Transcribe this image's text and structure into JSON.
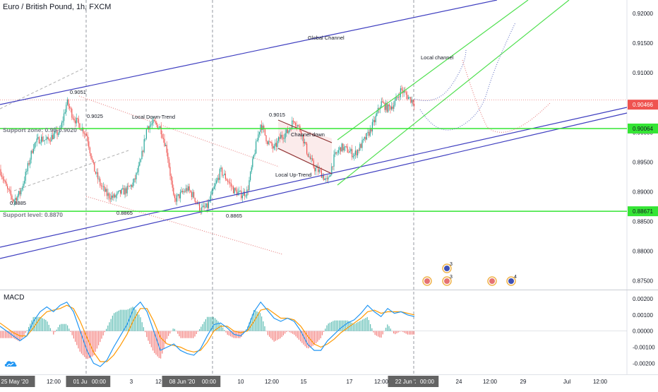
{
  "header": {
    "title": "Euro / British Pound, 1h, FXCM"
  },
  "macd": {
    "label": "MACD"
  },
  "logo_icon": "tradingview-cloud-icon",
  "colors": {
    "channel": "#3f3fc0",
    "local_channel": "#4fe04f",
    "support": "#35e535",
    "bull": "#26a69a",
    "bear": "#ef5350",
    "macd_line": "#2196f3",
    "signal_line": "#ff9800",
    "price_badge": "#ef5350"
  },
  "chart_data": [
    {
      "type": "candlestick",
      "symbol": "EUR/GBP",
      "interval": "1h",
      "price_axis": {
        "ticks": [
          "0.92000",
          "0.91500",
          "0.91000",
          "0.90500",
          "0.90000",
          "0.89500",
          "0.89000",
          "0.88500",
          "0.88000",
          "0.87500"
        ],
        "range": [
          0.874,
          0.9218
        ]
      },
      "time_axis": {
        "ticks": [
          "25 May '20",
          "12:00",
          "01 Jun '20",
          "00:00",
          "3",
          "12:00",
          "08 Jun '20",
          "00:00",
          "10",
          "12:00",
          "15",
          "17",
          "12:00",
          "22 Jun '20",
          "00:00",
          "24",
          "12:00",
          "29",
          "Jul",
          "12:00"
        ]
      },
      "price_path": [
        0.8938,
        0.8905,
        0.8885,
        0.8898,
        0.8935,
        0.8978,
        0.899,
        0.8986,
        0.8995,
        0.9002,
        0.9051,
        0.9025,
        0.901,
        0.8995,
        0.894,
        0.8912,
        0.8895,
        0.889,
        0.8898,
        0.8903,
        0.8915,
        0.8948,
        0.901,
        0.9015,
        0.9008,
        0.8968,
        0.8885,
        0.8895,
        0.8905,
        0.8892,
        0.887,
        0.8874,
        0.8905,
        0.8935,
        0.892,
        0.8902,
        0.8895,
        0.89,
        0.8962,
        0.9015,
        0.8985,
        0.8972,
        0.8993,
        0.9,
        0.9022,
        0.9002,
        0.8965,
        0.894,
        0.8932,
        0.8915,
        0.8958,
        0.8975,
        0.897,
        0.8962,
        0.8978,
        0.8995,
        0.9018,
        0.905,
        0.904,
        0.9048,
        0.9072,
        0.906,
        0.905
      ],
      "horizontal_levels": [
        {
          "label": "Support zone: 0.90-0.9020",
          "badge": "0.90064",
          "price": 0.90064
        },
        {
          "label": "Support level: 0.8870",
          "badge": "0.88671",
          "price": 0.88671
        }
      ],
      "current_price": {
        "badge": "0.90466",
        "price": 0.90466
      },
      "annotations": [
        "Global Channel",
        "Local channel",
        "Local Down-Trend",
        "Channel down",
        "Local Up-Trend",
        "0.9051",
        "0.9025",
        "0.9015",
        "0.8885",
        "0.8865",
        "0.8865"
      ],
      "event_badges": [
        "3",
        "3",
        "4"
      ]
    },
    {
      "type": "line",
      "title": "MACD",
      "y_ticks": [
        "0.00200",
        "0.00100",
        "0.00000",
        "-0.00100",
        "-0.00200"
      ],
      "ylim": [
        -0.0026,
        0.0024
      ],
      "macd_line": [
        0.0003,
        0.0,
        -0.0003,
        -0.0006,
        -0.0003,
        0.0006,
        0.0012,
        0.0015,
        0.0012,
        0.0016,
        0.0018,
        0.0012,
        0.0,
        -0.0012,
        -0.002,
        -0.0022,
        -0.0018,
        -0.001,
        -0.0003,
        0.0004,
        0.0014,
        0.0018,
        0.0012,
        0.0,
        -0.0012,
        -0.001,
        -0.0008,
        -0.0012,
        -0.0014,
        -0.0015,
        -0.0011,
        -0.0003,
        0.0004,
        0.0005,
        0.0002,
        -0.0002,
        -0.0003,
        0.0001,
        0.0012,
        0.0018,
        0.0013,
        0.0008,
        0.0006,
        0.0008,
        0.0006,
        0.0,
        -0.0008,
        -0.0012,
        -0.0012,
        -0.0006,
        -0.0002,
        0.0002,
        0.0005,
        0.0007,
        0.0011,
        0.0016,
        0.0012,
        0.0009,
        0.0014,
        0.0011,
        0.0012,
        0.001,
        0.0009
      ],
      "signal_line": [
        0.0005,
        0.0002,
        -0.0001,
        -0.0003,
        -0.0003,
        0.0002,
        0.0008,
        0.0012,
        0.0013,
        0.0014,
        0.0016,
        0.0014,
        0.0006,
        -0.0004,
        -0.0013,
        -0.0019,
        -0.0019,
        -0.0015,
        -0.0009,
        -0.0002,
        0.0007,
        0.0014,
        0.0014,
        0.0006,
        -0.0004,
        -0.0008,
        -0.0009,
        -0.001,
        -0.0012,
        -0.0013,
        -0.0012,
        -0.0007,
        0.0,
        0.0003,
        0.0003,
        0.0,
        -0.0001,
        0.0,
        0.0006,
        0.0013,
        0.0014,
        0.0011,
        0.0008,
        0.0008,
        0.0007,
        0.0003,
        -0.0003,
        -0.0008,
        -0.001,
        -0.0008,
        -0.0005,
        -0.0001,
        0.0002,
        0.0005,
        0.0008,
        0.0012,
        0.0013,
        0.0011,
        0.0012,
        0.0012,
        0.0012,
        0.0011,
        0.001
      ]
    }
  ]
}
